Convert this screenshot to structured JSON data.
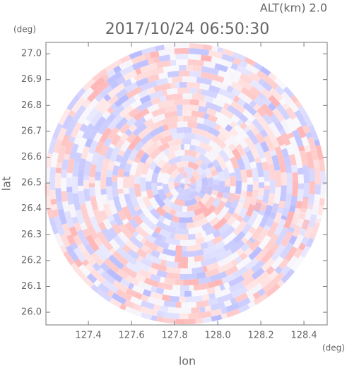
{
  "chart_data": {
    "type": "radar-field",
    "title": "2017/10/24 06:50:30",
    "subtitle": "ALT(km) 2.0",
    "x_label": "lon",
    "y_label": "lat",
    "x_unit": "(deg)",
    "y_unit": "(deg)",
    "xlim": [
      127.203,
      128.508
    ],
    "ylim": [
      25.951,
      27.044
    ],
    "xticks": [
      127.4,
      127.6,
      127.8,
      {
        "value": 128,
        "label": "128.0"
      },
      128.2,
      128.4
    ],
    "yticks": [
      {
        "value": 26,
        "label": "26.0"
      },
      26.1,
      26.2,
      26.3,
      26.4,
      26.5,
      26.6,
      26.7,
      26.8,
      26.9,
      {
        "value": 27,
        "label": "27.0"
      }
    ]
  }
}
